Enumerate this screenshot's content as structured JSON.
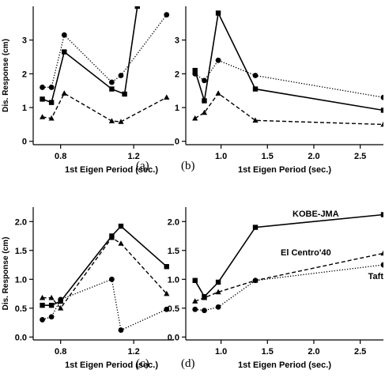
{
  "chart_data": [
    {
      "type": "line",
      "panel_label": "(a)",
      "xlabel": "1st Eigen Period (sec.)",
      "ylabel": "Dis. Response (cm)",
      "xlim": [
        0.65,
        1.42
      ],
      "ylim": [
        -0.1,
        4.0
      ],
      "xticks": [
        {
          "v": 0.8,
          "label": "0.8"
        },
        {
          "v": 1.2,
          "label": "1.2"
        }
      ],
      "yticks": [
        {
          "v": 0,
          "label": "0"
        },
        {
          "v": 1,
          "label": "1"
        },
        {
          "v": 2,
          "label": "2"
        },
        {
          "v": 3,
          "label": "3"
        }
      ],
      "series": [
        {
          "style": "solid",
          "marker": "square",
          "points": [
            [
              0.7,
              1.25
            ],
            [
              0.75,
              1.15
            ],
            [
              0.82,
              2.65
            ],
            [
              1.08,
              1.55
            ],
            [
              1.15,
              1.4
            ],
            [
              1.22,
              4.0
            ]
          ]
        },
        {
          "style": "dotted",
          "marker": "circle",
          "points": [
            [
              0.7,
              1.6
            ],
            [
              0.75,
              1.6
            ],
            [
              0.82,
              3.15
            ],
            [
              1.08,
              1.75
            ],
            [
              1.13,
              1.95
            ],
            [
              1.38,
              3.75
            ]
          ]
        },
        {
          "style": "dashed",
          "marker": "triangle",
          "points": [
            [
              0.7,
              0.72
            ],
            [
              0.75,
              0.68
            ],
            [
              0.82,
              1.42
            ],
            [
              1.08,
              0.6
            ],
            [
              1.13,
              0.58
            ],
            [
              1.38,
              1.3
            ]
          ]
        }
      ]
    },
    {
      "type": "line",
      "panel_label": "(b)",
      "xlabel": "1st Eigen Period (sec.)",
      "ylabel": "",
      "xlim": [
        0.62,
        2.75
      ],
      "ylim": [
        -0.1,
        4.0
      ],
      "xticks": [
        {
          "v": 1.0,
          "label": "1.0"
        },
        {
          "v": 1.5,
          "label": "1.5"
        },
        {
          "v": 2.0,
          "label": "2.0"
        },
        {
          "v": 2.5,
          "label": "2.5"
        }
      ],
      "yticks": [
        {
          "v": 0,
          "label": "0"
        },
        {
          "v": 1,
          "label": "1"
        },
        {
          "v": 2,
          "label": "2"
        },
        {
          "v": 3,
          "label": "3"
        }
      ],
      "series": [
        {
          "style": "solid",
          "marker": "square",
          "points": [
            [
              0.72,
              2.1
            ],
            [
              0.82,
              1.2
            ],
            [
              0.97,
              3.8
            ],
            [
              1.37,
              1.55
            ],
            [
              2.75,
              0.92
            ]
          ]
        },
        {
          "style": "dotted",
          "marker": "circle",
          "points": [
            [
              0.72,
              2.0
            ],
            [
              0.82,
              1.8
            ],
            [
              0.97,
              2.4
            ],
            [
              1.37,
              1.95
            ],
            [
              2.75,
              1.3
            ]
          ]
        },
        {
          "style": "dashed",
          "marker": "triangle",
          "points": [
            [
              0.72,
              0.68
            ],
            [
              0.82,
              0.85
            ],
            [
              0.97,
              1.42
            ],
            [
              1.37,
              0.62
            ],
            [
              2.75,
              0.5
            ]
          ]
        }
      ]
    },
    {
      "type": "line",
      "panel_label": "(c)",
      "xlabel": "1st Eigen Period (sec.)",
      "ylabel": "Dis. Response (cm)",
      "xlim": [
        0.65,
        1.42
      ],
      "ylim": [
        -0.05,
        2.25
      ],
      "xticks": [
        {
          "v": 0.8,
          "label": "0.8"
        },
        {
          "v": 1.2,
          "label": "1.2"
        }
      ],
      "yticks": [
        {
          "v": 0.0,
          "label": "0.0"
        },
        {
          "v": 0.5,
          "label": "0.5"
        },
        {
          "v": 1.0,
          "label": "1.0"
        },
        {
          "v": 1.5,
          "label": "1.5"
        },
        {
          "v": 2.0,
          "label": "2.0"
        }
      ],
      "series": [
        {
          "style": "solid",
          "marker": "square",
          "points": [
            [
              0.7,
              0.55
            ],
            [
              0.75,
              0.55
            ],
            [
              0.8,
              0.62
            ],
            [
              1.08,
              1.75
            ],
            [
              1.13,
              1.92
            ],
            [
              1.38,
              1.22
            ]
          ]
        },
        {
          "style": "dotted",
          "marker": "circle",
          "points": [
            [
              0.7,
              0.3
            ],
            [
              0.75,
              0.35
            ],
            [
              0.8,
              0.65
            ],
            [
              1.08,
              1.0
            ],
            [
              1.13,
              0.12
            ],
            [
              1.38,
              0.48
            ]
          ]
        },
        {
          "style": "dashed",
          "marker": "triangle",
          "points": [
            [
              0.7,
              0.68
            ],
            [
              0.75,
              0.68
            ],
            [
              0.8,
              0.5
            ],
            [
              1.08,
              1.72
            ],
            [
              1.13,
              1.62
            ],
            [
              1.38,
              0.75
            ]
          ]
        }
      ]
    },
    {
      "type": "line",
      "panel_label": "(d)",
      "xlabel": "1st Eigen Period (sec.)",
      "ylabel": "",
      "xlim": [
        0.62,
        2.75
      ],
      "ylim": [
        -0.05,
        2.25
      ],
      "xticks": [
        {
          "v": 1.0,
          "label": "1.0"
        },
        {
          "v": 1.5,
          "label": "1.5"
        },
        {
          "v": 2.0,
          "label": "2.0"
        },
        {
          "v": 2.5,
          "label": "2.5"
        }
      ],
      "yticks": [
        {
          "v": 0.0,
          "label": "0.0"
        },
        {
          "v": 0.5,
          "label": "0.5"
        },
        {
          "v": 1.0,
          "label": "1.0"
        },
        {
          "v": 1.5,
          "label": "1.5"
        },
        {
          "v": 2.0,
          "label": "2.0"
        }
      ],
      "annotations": [
        "KOBE-JMA",
        "El Centro'40",
        "Taft"
      ],
      "series": [
        {
          "style": "solid",
          "marker": "square",
          "points": [
            [
              0.72,
              0.98
            ],
            [
              0.82,
              0.7
            ],
            [
              0.97,
              0.95
            ],
            [
              1.37,
              1.9
            ],
            [
              2.75,
              2.12
            ]
          ]
        },
        {
          "style": "dotted",
          "marker": "circle",
          "points": [
            [
              0.72,
              0.48
            ],
            [
              0.82,
              0.46
            ],
            [
              0.97,
              0.52
            ],
            [
              1.37,
              0.98
            ],
            [
              2.75,
              1.25
            ]
          ]
        },
        {
          "style": "dashed",
          "marker": "triangle",
          "points": [
            [
              0.72,
              0.62
            ],
            [
              0.82,
              0.68
            ],
            [
              0.97,
              0.78
            ],
            [
              1.37,
              0.98
            ],
            [
              2.75,
              1.45
            ]
          ]
        }
      ]
    }
  ]
}
